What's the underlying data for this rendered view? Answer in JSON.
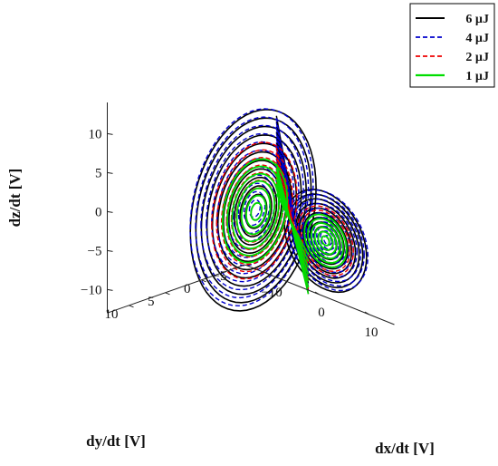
{
  "chart_data": {
    "type": "line",
    "projection": "3d",
    "title": "",
    "xlabel": "dx/dt [V]",
    "ylabel": "dy/dt [V]",
    "zlabel": "dz/dt [V]",
    "x_ticks": [
      "−10",
      "0",
      "10"
    ],
    "y_ticks": [
      "−5",
      "0",
      "5",
      "10"
    ],
    "z_ticks": [
      "−10",
      "−5",
      "0",
      "5",
      "10"
    ],
    "xlim": [
      -15,
      15
    ],
    "ylim": [
      -6,
      13
    ],
    "zlim": [
      -13,
      14
    ],
    "grid": false,
    "legend_position": "top-right",
    "series": [
      {
        "name": "6 µJ",
        "color": "#000000",
        "line_style": "solid",
        "line_width": 1.6,
        "outer_radius": 14,
        "turns": 12,
        "offset": 0
      },
      {
        "name": "4 µJ",
        "color": "#0000cc",
        "line_style": "dashed",
        "line_width": 1.4,
        "outer_radius": 13.7,
        "turns": 12,
        "offset": 0.45
      },
      {
        "name": "2 µJ",
        "color": "#ee0000",
        "line_style": "dashed",
        "line_width": 1.4,
        "outer_radius": 9.5,
        "turns": 9,
        "offset": 0
      },
      {
        "name": "1 µJ",
        "color": "#00dd00",
        "line_style": "solid",
        "line_width": 1.8,
        "outer_radius": 7.2,
        "turns": 7,
        "offset": 0
      }
    ]
  }
}
